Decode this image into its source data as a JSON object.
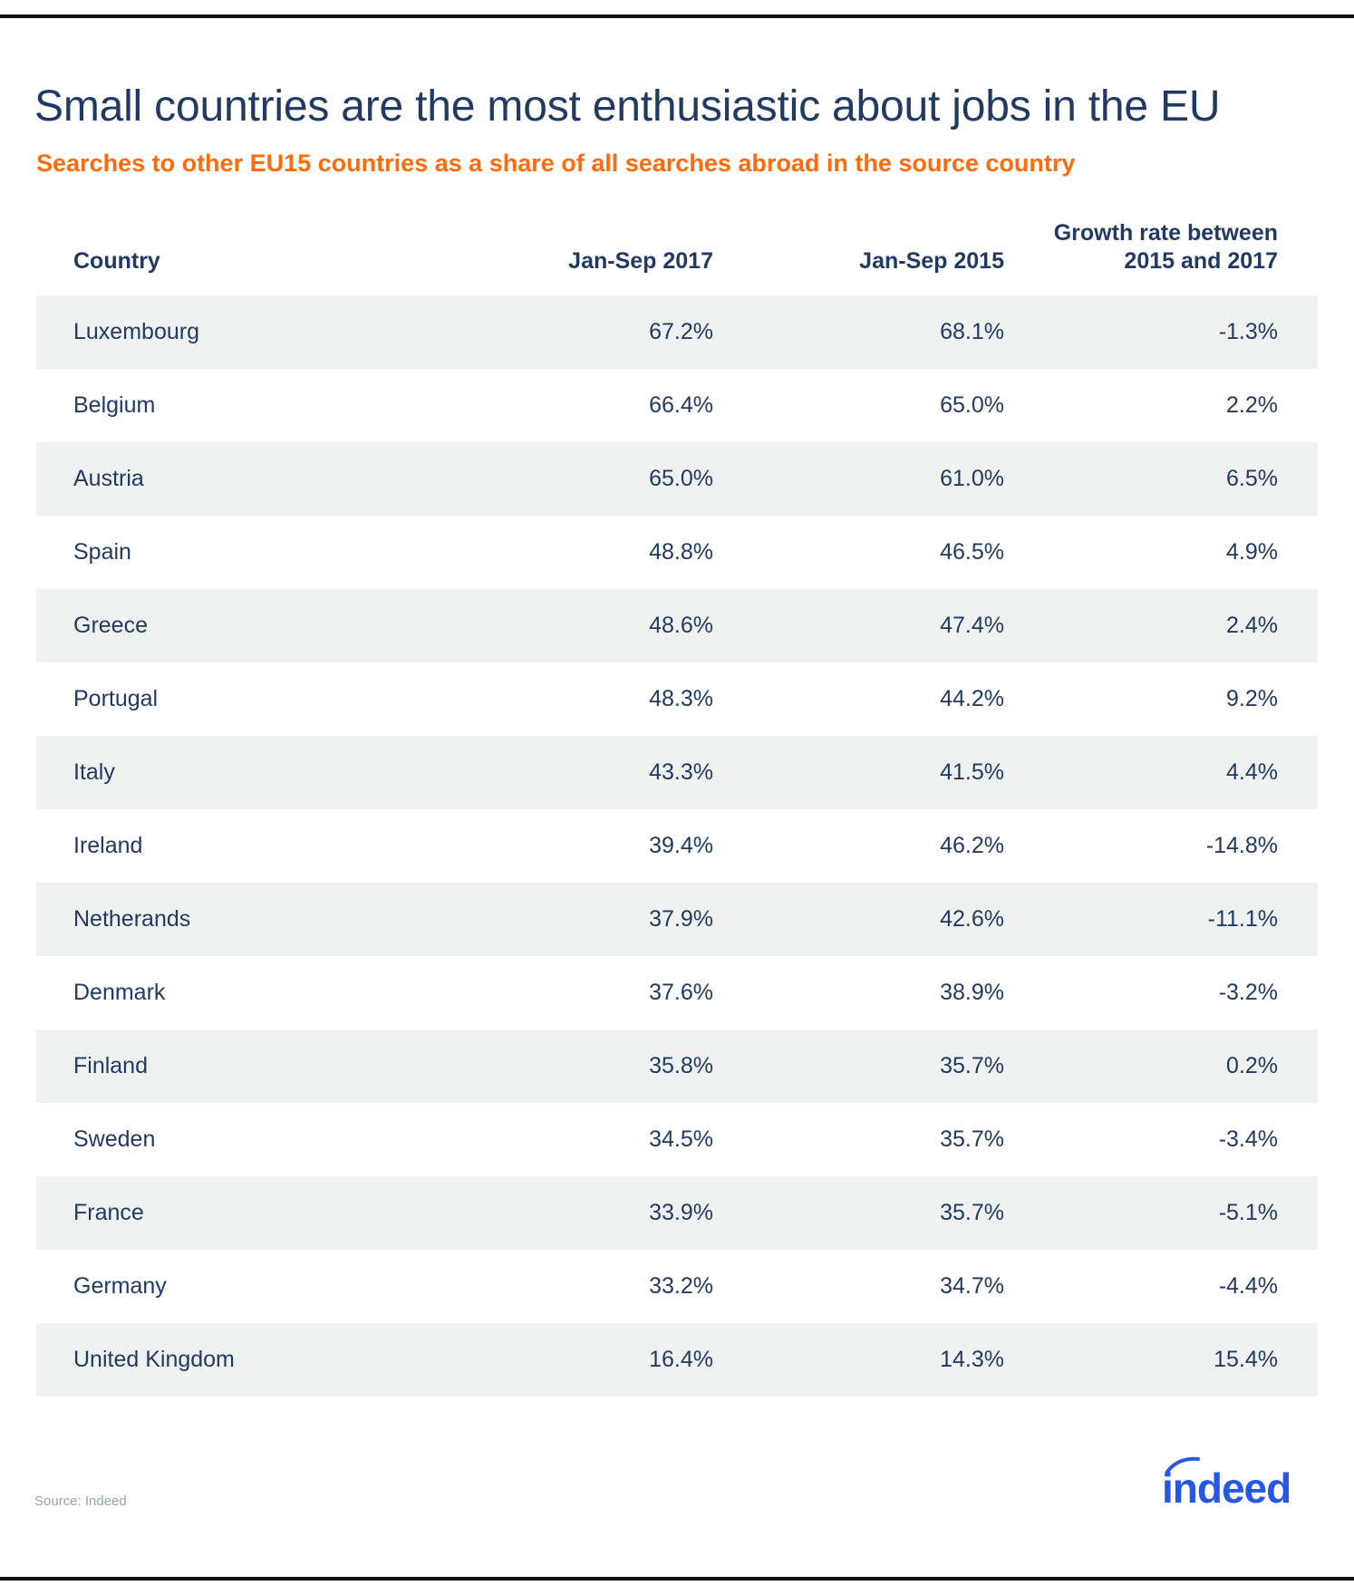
{
  "title": "Small countries are the most enthusiastic about jobs in the EU",
  "subtitle": "Searches to other EU15 countries as a share of all searches abroad in the source country",
  "colors": {
    "title": "#213a63",
    "subtitle": "#ff6b0d",
    "row_shade": "#f0f2f2",
    "logo": "#2557e8"
  },
  "source": "Source: Indeed",
  "logo_text": "indeed",
  "chart_data": {
    "type": "table",
    "columns": [
      "Country",
      "Jan-Sep 2017",
      "Jan-Sep 2015",
      "Growth rate between 2015 and 2017"
    ],
    "header_lines": {
      "growth_line1": "Growth rate between",
      "growth_line2": "2015 and 2017"
    },
    "rows": [
      [
        "Luxembourg",
        "67.2%",
        "68.1%",
        "-1.3%"
      ],
      [
        "Belgium",
        "66.4%",
        "65.0%",
        "2.2%"
      ],
      [
        "Austria",
        "65.0%",
        "61.0%",
        "6.5%"
      ],
      [
        "Spain",
        "48.8%",
        "46.5%",
        "4.9%"
      ],
      [
        "Greece",
        "48.6%",
        "47.4%",
        "2.4%"
      ],
      [
        "Portugal",
        "48.3%",
        "44.2%",
        "9.2%"
      ],
      [
        "Italy",
        "43.3%",
        "41.5%",
        "4.4%"
      ],
      [
        "Ireland",
        "39.4%",
        "46.2%",
        "-14.8%"
      ],
      [
        "Netherands",
        "37.9%",
        "42.6%",
        "-11.1%"
      ],
      [
        "Denmark",
        "37.6%",
        "38.9%",
        "-3.2%"
      ],
      [
        "Finland",
        "35.8%",
        "35.7%",
        "0.2%"
      ],
      [
        "Sweden",
        "34.5%",
        "35.7%",
        "-3.4%"
      ],
      [
        "France",
        "33.9%",
        "35.7%",
        "-5.1%"
      ],
      [
        "Germany",
        "33.2%",
        "34.7%",
        "-4.4%"
      ],
      [
        "United Kingdom",
        "16.4%",
        "14.3%",
        "15.4%"
      ]
    ]
  }
}
